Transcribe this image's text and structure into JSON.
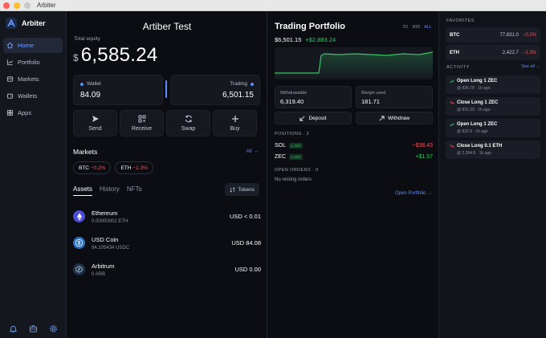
{
  "window": {
    "title": "Arbiter"
  },
  "sidebar": {
    "brand": "Arbiter",
    "items": [
      {
        "label": "Home",
        "icon": "home-icon"
      },
      {
        "label": "Portfolio",
        "icon": "portfolio-icon"
      },
      {
        "label": "Markets",
        "icon": "markets-icon"
      },
      {
        "label": "Wallets",
        "icon": "wallet-icon"
      },
      {
        "label": "Apps",
        "icon": "apps-icon"
      }
    ],
    "bottom_icons": [
      "bell-icon",
      "briefcase-icon",
      "gear-icon"
    ]
  },
  "main": {
    "title": "Artiber Test",
    "equity_label": "Total equity",
    "currency_symbol": "$",
    "equity_value": "6,585.24",
    "wallet": {
      "label": "Wallet",
      "value": "84.09"
    },
    "trading": {
      "label": "Trading",
      "value": "6,501.15"
    },
    "actions": [
      "Send",
      "Receive",
      "Swap",
      "Buy"
    ],
    "markets_heading": "Markets",
    "markets_all": "All →",
    "market_pills": [
      {
        "symbol": "BTC",
        "change": "−0.2%"
      },
      {
        "symbol": "ETH",
        "change": "−1.3%"
      }
    ],
    "tabs": [
      "Assets",
      "History",
      "NFTs"
    ],
    "tokens_button": "Tokens",
    "assets": [
      {
        "name": "Ethereum",
        "sub": "0.00000002 ETH",
        "usd": "USD < 0.01"
      },
      {
        "name": "USD Coin",
        "sub": "84.105434 USDC",
        "usd": "USD 84.08"
      },
      {
        "name": "Arbitrum",
        "sub": "0 ARB",
        "usd": "USD 0.00"
      }
    ]
  },
  "portfolio": {
    "title": "Trading Portfolio",
    "ranges": [
      "7D",
      "30D",
      "ALL"
    ],
    "active_range": "ALL",
    "value": "$6,501.15",
    "change": "+$2,883.24",
    "withdrawable_label": "Withdrawable",
    "withdrawable_value": "6,319.40",
    "margin_label": "Margin used",
    "margin_value": "181.71",
    "deposit": "Deposit",
    "withdraw": "Withdraw",
    "positions_heading": "POSITIONS · 2",
    "positions": [
      {
        "symbol": "SOL",
        "leverage": "L 10×",
        "pnl": "−$38.43"
      },
      {
        "symbol": "ZEC",
        "leverage": "L 10×",
        "pnl": "+$1.57"
      }
    ],
    "orders_heading": "OPEN ORDERS · 0",
    "orders_empty": "No resting orders",
    "open_portfolio": "Open Portfolio →"
  },
  "right": {
    "favorites_heading": "FAVORITES",
    "favorites": [
      {
        "symbol": "BTC",
        "price": "77,831.0",
        "change": "−0.2%"
      },
      {
        "symbol": "ETH",
        "price": "2,422.7",
        "change": "−1.3%"
      }
    ],
    "activity_heading": "ACTIVITY",
    "see_all": "See all →",
    "activity": [
      {
        "title": "Open Long 1 ZEC",
        "detail": "@ 836.78 · 1h ago"
      },
      {
        "title": "Close Long 1 ZEC",
        "detail": "@ 831.03 · 1h ago"
      },
      {
        "title": "Open Long 1 ZEC",
        "detail": "@ 822.9 · 1h ago"
      },
      {
        "title": "Close Long 0.1 ETH",
        "detail": "@ 2,394.8 · 1h ago"
      }
    ]
  },
  "colors": {
    "accent": "#5b8cff",
    "positive": "#35c768",
    "negative": "#f0575a"
  }
}
